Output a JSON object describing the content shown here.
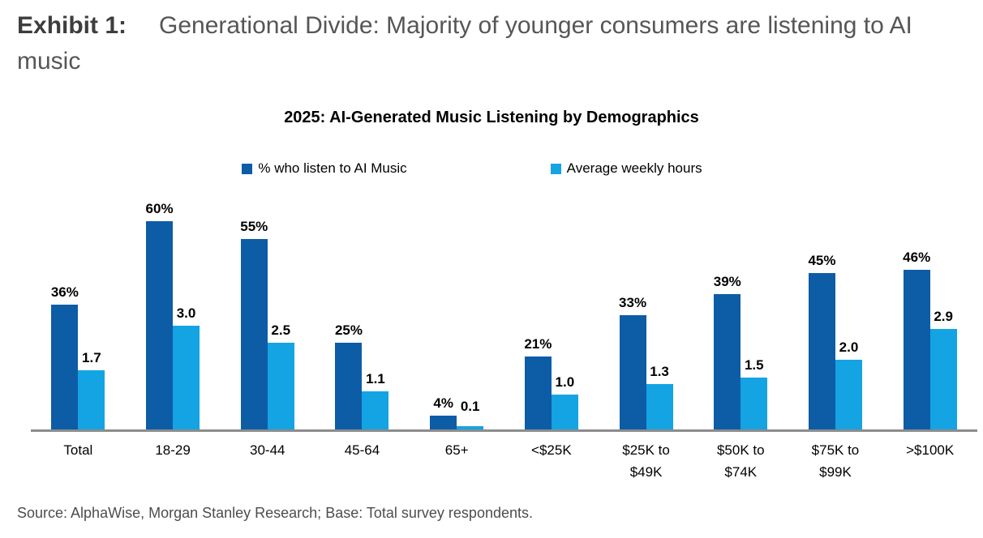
{
  "header": {
    "exhibit_label": "Exhibit 1:",
    "title": "Generational Divide: Majority of younger consumers are listening to AI music"
  },
  "chart_data": {
    "type": "bar",
    "title": "2025: AI-Generated Music Listening by Demographics",
    "categories": [
      "Total",
      "18-29",
      "30-44",
      "45-64",
      "65+",
      "<$25K",
      "$25K to $49K",
      "$50K to $74K",
      "$75K to $99K",
      ">$100K"
    ],
    "series": [
      {
        "name": "% who listen to AI Music",
        "color": "#0d5ca6",
        "unit": "percent",
        "values": [
          36,
          60,
          55,
          25,
          4,
          21,
          33,
          39,
          45,
          46
        ],
        "labels": [
          "36%",
          "60%",
          "55%",
          "25%",
          "4%",
          "21%",
          "33%",
          "39%",
          "45%",
          "46%"
        ]
      },
      {
        "name": "Average weekly hours",
        "color": "#14a3e3",
        "unit": "hours",
        "values": [
          1.7,
          3.0,
          2.5,
          1.1,
          0.1,
          1.0,
          1.3,
          1.5,
          2.0,
          2.9
        ],
        "labels": [
          "1.7",
          "3.0",
          "2.5",
          "1.1",
          "0.1",
          "1.0",
          "1.3",
          "1.5",
          "2.0",
          "2.9"
        ]
      }
    ],
    "axes": {
      "percent_max": 72,
      "hours_to_percent_scale": 10,
      "gridlines": false,
      "value_axis_visible": false,
      "baseline_color": "#8c8c8c"
    },
    "legend_position": "top",
    "data_labels": "outside-end"
  },
  "source": "Source: AlphaWise, Morgan Stanley Research; Base: Total survey respondents."
}
